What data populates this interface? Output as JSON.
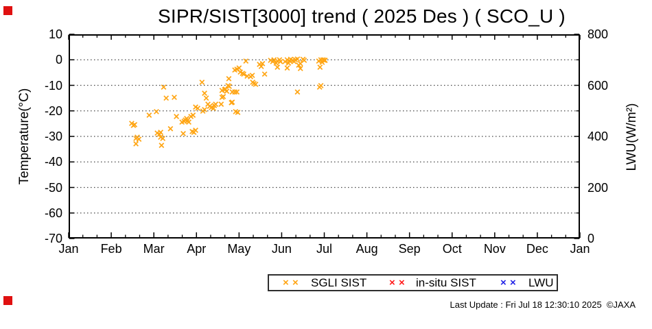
{
  "corner_markers": {
    "color": "#e01010",
    "top_left": true,
    "bottom_left": true
  },
  "glyphs": {
    "x_marker": "×"
  },
  "chart_data": {
    "type": "scatter",
    "title": "SIPR/SIST[3000] trend ( 2025 Des ) ( SCO_U )",
    "x_axis": {
      "tick_labels": [
        "Jan",
        "Feb",
        "Mar",
        "Apr",
        "May",
        "Jun",
        "Jul",
        "Aug",
        "Sep",
        "Oct",
        "Nov",
        "Dec",
        "Jan"
      ],
      "range_months": [
        0,
        12
      ],
      "minor_ticks_per_month": 2
    },
    "y_left": {
      "label": "Temperature(°C)",
      "range": [
        -70,
        10
      ],
      "tick_values": [
        10,
        0,
        -10,
        -20,
        -30,
        -40,
        -50,
        -60,
        -70
      ]
    },
    "y_right": {
      "label": "LWU(W/m²)",
      "range": [
        0,
        800
      ],
      "tick_values": [
        800,
        600,
        400,
        200,
        0
      ],
      "minor_tick_step": 100
    },
    "grid": {
      "style": "dotted",
      "color": "#444444",
      "horizontal_at": [
        0,
        -10,
        -20,
        -30,
        -40,
        -50,
        -60
      ]
    },
    "legend_position": "bottom-center",
    "series": [
      {
        "name": "SGLI SIST",
        "color": "#ffa513",
        "marker": "x",
        "points": [
          [
            1.48,
            -24.9
          ],
          [
            1.52,
            -25.7
          ],
          [
            1.55,
            -25.4
          ],
          [
            1.58,
            -30.8
          ],
          [
            1.61,
            -30.3
          ],
          [
            1.65,
            -31.1
          ],
          [
            1.58,
            -32.9
          ],
          [
            1.89,
            -21.7
          ],
          [
            2.06,
            -20.3
          ],
          [
            2.08,
            -28.7
          ],
          [
            2.13,
            -29.2
          ],
          [
            2.16,
            -28.4
          ],
          [
            2.16,
            -30.3
          ],
          [
            2.21,
            -30.8
          ],
          [
            2.18,
            -33.5
          ],
          [
            2.23,
            -10.7
          ],
          [
            2.29,
            -15.0
          ],
          [
            2.48,
            -14.7
          ],
          [
            2.39,
            -27.0
          ],
          [
            2.53,
            -22.2
          ],
          [
            2.66,
            -24.4
          ],
          [
            2.71,
            -24.1
          ],
          [
            2.74,
            -23.6
          ],
          [
            2.77,
            -23.0
          ],
          [
            2.79,
            -23.8
          ],
          [
            2.82,
            -24.4
          ],
          [
            2.69,
            -28.9
          ],
          [
            2.87,
            -22.2
          ],
          [
            2.92,
            -21.7
          ],
          [
            2.98,
            -18.5
          ],
          [
            3.03,
            -19.0
          ],
          [
            2.9,
            -28.1
          ],
          [
            2.94,
            -28.4
          ],
          [
            2.98,
            -27.6
          ],
          [
            3.13,
            -8.8
          ],
          [
            3.19,
            -13.1
          ],
          [
            3.23,
            -15.0
          ],
          [
            3.15,
            -20.1
          ],
          [
            3.19,
            -19.5
          ],
          [
            3.27,
            -17.4
          ],
          [
            3.31,
            -18.2
          ],
          [
            3.35,
            -18.7
          ],
          [
            3.4,
            -19.0
          ],
          [
            3.42,
            -17.9
          ],
          [
            3.45,
            -17.4
          ],
          [
            3.6,
            -12.0
          ],
          [
            3.68,
            -11.5
          ],
          [
            3.58,
            -17.4
          ],
          [
            3.6,
            -14.7
          ],
          [
            3.63,
            -14.4
          ],
          [
            3.66,
            -11.7
          ],
          [
            3.71,
            -12.3
          ],
          [
            3.74,
            -10.1
          ],
          [
            3.77,
            -10.4
          ],
          [
            3.76,
            -7.4
          ],
          [
            3.84,
            -12.6
          ],
          [
            3.9,
            -12.6
          ],
          [
            3.95,
            -12.6
          ],
          [
            3.82,
            -16.8
          ],
          [
            3.84,
            -16.6
          ],
          [
            3.92,
            -20.3
          ],
          [
            3.97,
            -20.6
          ],
          [
            3.9,
            -4.0
          ],
          [
            3.95,
            -3.7
          ],
          [
            4.0,
            -3.2
          ],
          [
            4.03,
            -4.8
          ],
          [
            4.08,
            -5.3
          ],
          [
            4.11,
            -5.6
          ],
          [
            4.16,
            -0.5
          ],
          [
            4.19,
            -6.4
          ],
          [
            4.27,
            -6.6
          ],
          [
            4.31,
            -6.1
          ],
          [
            4.32,
            -8.8
          ],
          [
            4.35,
            -9.3
          ],
          [
            4.39,
            -9.6
          ],
          [
            4.48,
            -1.8
          ],
          [
            4.55,
            -1.5
          ],
          [
            4.52,
            -2.6
          ],
          [
            4.6,
            -5.6
          ],
          [
            4.74,
            -0.2
          ],
          [
            4.79,
            -0.7
          ],
          [
            4.82,
            0.0
          ],
          [
            4.87,
            -1.3
          ],
          [
            4.9,
            -0.5
          ],
          [
            4.95,
            0.0
          ],
          [
            4.97,
            -0.7
          ],
          [
            4.9,
            -2.9
          ],
          [
            5.08,
            -0.7
          ],
          [
            5.13,
            0.0
          ],
          [
            5.16,
            -1.3
          ],
          [
            5.19,
            -0.5
          ],
          [
            5.21,
            0.2
          ],
          [
            5.26,
            -0.2
          ],
          [
            5.29,
            -0.7
          ],
          [
            5.13,
            -3.2
          ],
          [
            5.32,
            0.0
          ],
          [
            5.37,
            0.3
          ],
          [
            5.4,
            -2.1
          ],
          [
            5.44,
            -1.5
          ],
          [
            5.44,
            -3.4
          ],
          [
            5.5,
            0.2
          ],
          [
            5.53,
            -0.2
          ],
          [
            5.37,
            -12.6
          ],
          [
            5.87,
            -0.5
          ],
          [
            5.92,
            0.0
          ],
          [
            5.95,
            -1.0
          ],
          [
            5.9,
            -2.9
          ],
          [
            5.89,
            -10.7
          ],
          [
            5.92,
            -10.1
          ],
          [
            5.97,
            0.0
          ],
          [
            6.0,
            -0.2
          ],
          [
            6.02,
            -0.2
          ]
        ]
      },
      {
        "name": "in-situ SIST",
        "color": "#ff1a1a",
        "marker": "x",
        "points": []
      },
      {
        "name": "LWU",
        "color": "#2222e6",
        "marker": "x",
        "points": []
      }
    ]
  },
  "footer": {
    "last_update": "Last Update : Fri Jul 18 12:30:10 2025  ©JAXA"
  }
}
